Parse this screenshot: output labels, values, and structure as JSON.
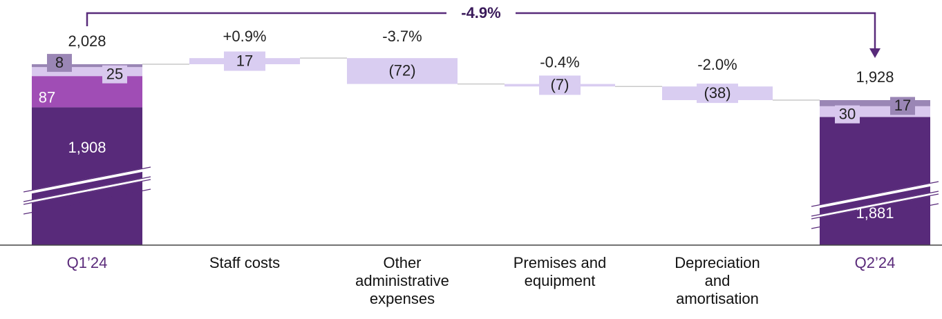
{
  "chart_data": {
    "type": "waterfall",
    "categories": [
      "Q1’24",
      "Staff costs",
      "Other administrative expenses",
      "Premises and equipment",
      "Depreciation and amortisation",
      "Q2’24"
    ],
    "start": {
      "values": [
        1908,
        87,
        25,
        8
      ],
      "value_labels": [
        "1,908",
        "87",
        "25",
        "8"
      ],
      "colors": [
        "#582a7a",
        "#a04db5",
        "#d9c8ee",
        "#9a86b5"
      ],
      "total": 2028,
      "total_label": "2,028"
    },
    "end": {
      "values": [
        1881,
        30,
        17
      ],
      "value_labels": [
        "1,881",
        "30",
        "17"
      ],
      "colors": [
        "#582a7a",
        "#d9c8ee",
        "#9a86b5"
      ],
      "total": 1928,
      "total_label": "1,928"
    },
    "changes": {
      "values": [
        17,
        -72,
        -7,
        -38
      ],
      "value_labels": [
        "17",
        "(72)",
        "(7)",
        "(38)"
      ],
      "percent": [
        0.9,
        -3.7,
        -0.4,
        -2.0
      ],
      "percent_labels": [
        "+0.9%",
        "-3.7%",
        "-0.4%",
        "-2.0%"
      ],
      "color": "#d9cdf1"
    },
    "overall_change": {
      "value": -4.9,
      "label": "-4.9%"
    }
  }
}
